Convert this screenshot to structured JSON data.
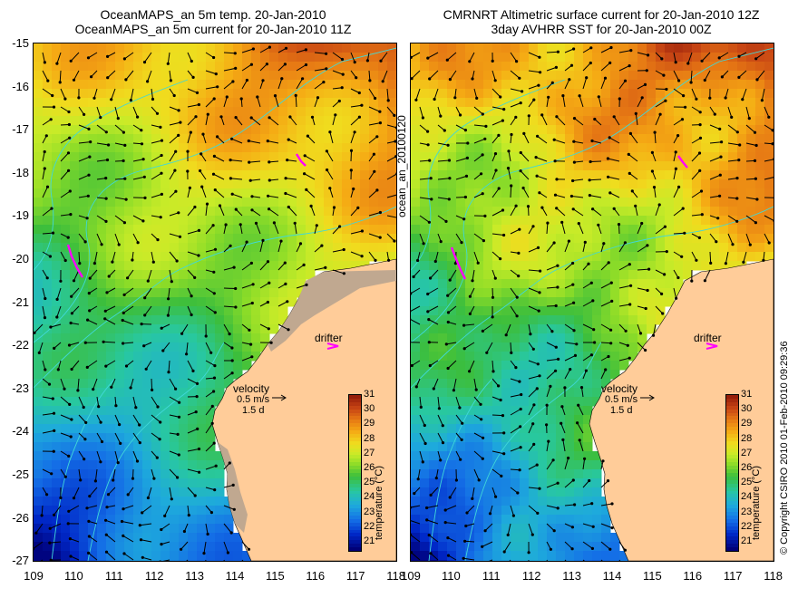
{
  "left_panel": {
    "title_line1": "OceanMAPS_an 5m temp. 20-Jan-2010",
    "title_line2": "OceanMAPS_an 5m current for 20-Jan-2010 11Z"
  },
  "right_panel": {
    "title_line1": "CMRNRT Altimetric surface current for 20-Jan-2010 12Z",
    "title_line2": "3day AVHRR SST for 20-Jan-2010 00Z"
  },
  "y_axis_labels": [
    "-15",
    "-16",
    "-17",
    "-18",
    "-19",
    "-20",
    "-21",
    "-22",
    "-23",
    "-24",
    "-25",
    "-26",
    "-27"
  ],
  "x_axis_labels": [
    "109",
    "110",
    "111",
    "112",
    "113",
    "114",
    "115",
    "116",
    "117",
    "118"
  ],
  "map_extent": {
    "lon": [
      109,
      118
    ],
    "lat": [
      -27,
      -15
    ]
  },
  "middle_vertical_label": "ocean_an_20100120",
  "right_vertical_label": "© Copyright CSIRO 2010   01-Feb-2010 09:29:36",
  "drifter_label": "drifter",
  "velocity_legend": {
    "title": "velocity",
    "speed": "0.5 m/s",
    "duration": "1.5 d"
  },
  "colorbar": {
    "title": "temperature (°C)",
    "ticks": [
      "31",
      "30",
      "29",
      "28",
      "27",
      "26",
      "25",
      "24",
      "23",
      "22",
      "21"
    ],
    "range": [
      20.5,
      31
    ]
  },
  "colors": {
    "land": "#ffcc99",
    "model_land_mask": "#c0a890",
    "current_arrows": "#000000",
    "bathymetry_contours": "#40d8d8",
    "drifter_tracks": "#ff00ff"
  }
}
